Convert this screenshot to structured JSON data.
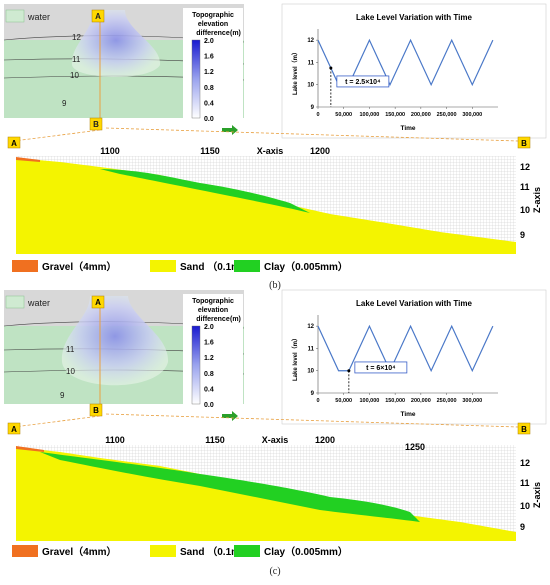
{
  "panels": [
    {
      "id": "b",
      "caption": "(b)",
      "map": {
        "water_label": "water",
        "contours": [
          "12",
          "11",
          "10",
          "9"
        ],
        "section_start": "A",
        "section_end": "B",
        "colorbar": {
          "title_lines": [
            "Topographic",
            "elevation",
            "difference",
            "(m)"
          ],
          "ticks": [
            "2.0",
            "1.6",
            "1.2",
            "0.8",
            "0.4",
            "0.0"
          ],
          "colors": {
            "low": "#ffffff",
            "mid": "#9aa3ee",
            "high": "#1a1ad0"
          }
        }
      },
      "chart_data": {
        "type": "line",
        "title": "Lake Level Variation with Time",
        "xlabel": "Time",
        "ylabel": "Lake level（m）",
        "xlim": [
          0,
          350000
        ],
        "ylim": [
          9,
          12.5
        ],
        "xticks": [
          0,
          50000,
          100000,
          150000,
          200000,
          250000,
          300000
        ],
        "xtick_labels": [
          "0",
          "50,000",
          "100,000",
          "150,000",
          "200,000",
          "250,000",
          "300,000"
        ],
        "yticks": [
          9,
          10,
          11,
          12
        ],
        "ytick_labels": [
          "9",
          "10",
          "11",
          "12"
        ],
        "series": [
          {
            "x": [
              0,
              40000,
              60000,
              100000,
              140000,
              180000,
              220000,
              260000,
              300000,
              340000
            ],
            "y": [
              12,
              10,
              10,
              12,
              10,
              12,
              10,
              12,
              10,
              12
            ],
            "color": "#4a78c8"
          }
        ],
        "marker_x": 25000,
        "annotation": "t = 2.5×10⁴"
      },
      "section": {
        "start_label": "A",
        "end_label": "B",
        "x_title": "X-axis",
        "z_title": "Z-axis",
        "x_ticks": [
          "1100",
          "1150",
          "1200"
        ],
        "z_ticks": [
          "12",
          "11",
          "10",
          "9"
        ]
      },
      "legend": [
        {
          "label": "Gravel（4mm）",
          "color": "#f07020"
        },
        {
          "label": "Sand （0.1mm）",
          "color": "#f4f400"
        },
        {
          "label": "Clay（0.005mm）",
          "color": "#22d022"
        }
      ]
    },
    {
      "id": "c",
      "caption": "(c)",
      "map": {
        "water_label": "water",
        "contours": [
          "11",
          "10",
          "9"
        ],
        "section_start": "A",
        "section_end": "B",
        "colorbar": {
          "title_lines": [
            "Topographic",
            "elevation",
            "difference",
            "(m)"
          ],
          "ticks": [
            "2.0",
            "1.6",
            "1.2",
            "0.8",
            "0.4",
            "0.0"
          ],
          "colors": {
            "low": "#ffffff",
            "mid": "#9aa3ee",
            "high": "#1a1ad0"
          }
        }
      },
      "chart_data": {
        "type": "line",
        "title": "Lake Level Variation with Time",
        "xlabel": "Time",
        "ylabel": "Lake level（m）",
        "xlim": [
          0,
          350000
        ],
        "ylim": [
          9,
          12.5
        ],
        "xticks": [
          0,
          50000,
          100000,
          150000,
          200000,
          250000,
          300000
        ],
        "xtick_labels": [
          "0",
          "50,000",
          "100,000",
          "150,000",
          "200,000",
          "250,000",
          "300,000"
        ],
        "yticks": [
          9,
          10,
          11,
          12
        ],
        "ytick_labels": [
          "9",
          "10",
          "11",
          "12"
        ],
        "series": [
          {
            "x": [
              0,
              40000,
              60000,
              100000,
              140000,
              180000,
              220000,
              260000,
              300000,
              340000
            ],
            "y": [
              12,
              10,
              10,
              12,
              10,
              12,
              10,
              12,
              10,
              12
            ],
            "color": "#4a78c8"
          }
        ],
        "marker_x": 60000,
        "annotation": "t = 6×10⁴"
      },
      "section": {
        "start_label": "A",
        "end_label": "B",
        "x_title": "X-axis",
        "z_title": "Z-axis",
        "x_ticks": [
          "1100",
          "1150",
          "1200",
          "1250"
        ],
        "z_ticks": [
          "12",
          "11",
          "10",
          "9"
        ]
      },
      "legend": [
        {
          "label": "Gravel（4mm）",
          "color": "#f07020"
        },
        {
          "label": "Sand （0.1mm）",
          "color": "#f4f400"
        },
        {
          "label": "Clay（0.005mm）",
          "color": "#22d022"
        }
      ]
    }
  ]
}
